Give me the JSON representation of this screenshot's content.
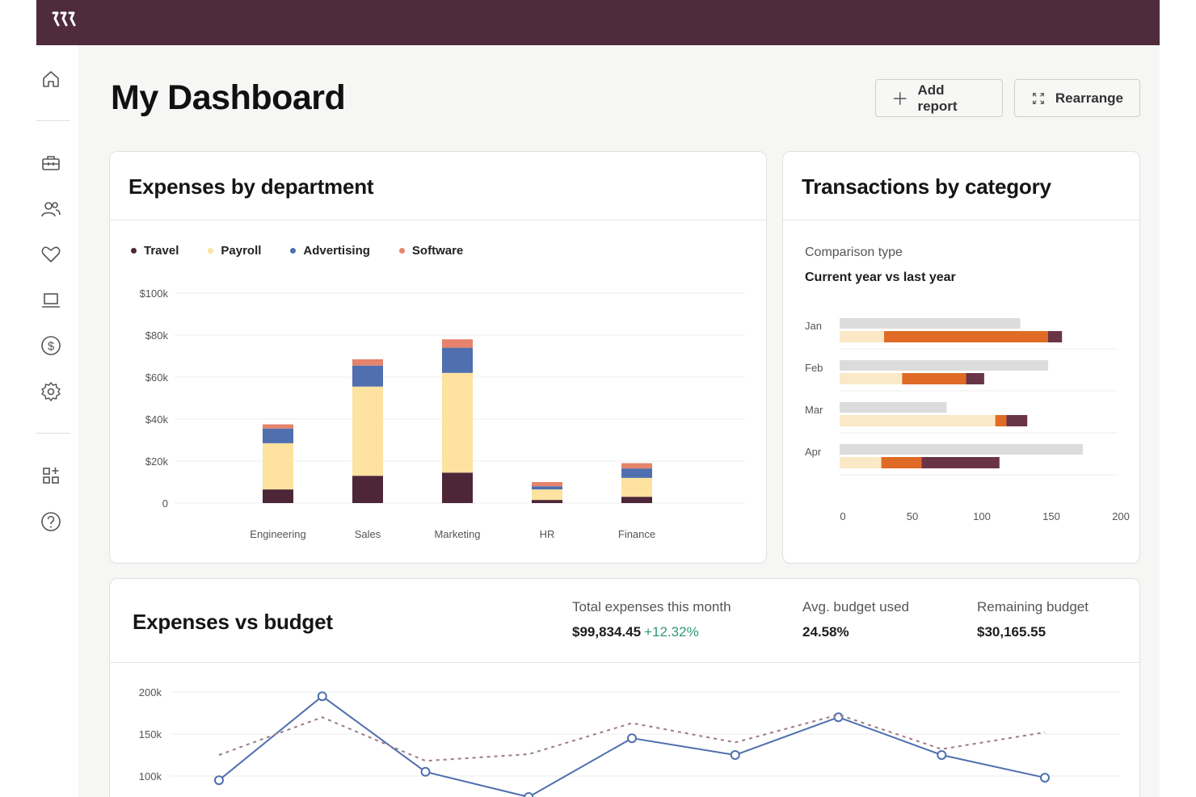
{
  "page": {
    "title": "My Dashboard"
  },
  "header": {
    "add_report_label": "Add report",
    "rearrange_label": "Rearrange"
  },
  "sidebar": {
    "items": [
      {
        "name": "home-icon"
      },
      {
        "name": "briefcase-icon"
      },
      {
        "name": "people-icon"
      },
      {
        "name": "heart-icon"
      },
      {
        "name": "laptop-icon"
      },
      {
        "name": "dollar-icon"
      },
      {
        "name": "gear-icon"
      },
      {
        "name": "add-widget-icon"
      },
      {
        "name": "help-icon"
      }
    ]
  },
  "expenses_by_department": {
    "title": "Expenses by department",
    "legend": [
      {
        "label": "Travel",
        "color": "#4d2738"
      },
      {
        "label": "Payroll",
        "color": "#fde2a0"
      },
      {
        "label": "Advertising",
        "color": "#4f6fae"
      },
      {
        "label": "Software",
        "color": "#e5836c"
      }
    ]
  },
  "transactions_by_category": {
    "title": "Transactions by category",
    "comparison_label": "Comparison type",
    "comparison_value": "Current year vs last year"
  },
  "expenses_vs_budget": {
    "title": "Expenses vs budget",
    "stats": [
      {
        "label": "Total expenses this month",
        "value": "$99,834.45",
        "delta": "+12.32%"
      },
      {
        "label": "Avg. budget used",
        "value": "24.58%"
      },
      {
        "label": "Remaining budget",
        "value": "$30,165.55"
      }
    ]
  },
  "chart_data": [
    {
      "type": "bar",
      "stacked": true,
      "categories": [
        "Engineering",
        "Sales",
        "Marketing",
        "HR",
        "Finance"
      ],
      "series": [
        {
          "name": "Travel",
          "color": "#4d2738",
          "values": [
            6.5,
            13,
            14.5,
            1.5,
            3
          ]
        },
        {
          "name": "Payroll",
          "color": "#fde2a0",
          "values": [
            22,
            42.5,
            47.5,
            5,
            9
          ]
        },
        {
          "name": "Advertising",
          "color": "#4f6fae",
          "values": [
            7,
            10,
            12,
            1.5,
            4.5
          ]
        },
        {
          "name": "Software",
          "color": "#e5836c",
          "values": [
            2,
            3,
            4,
            2,
            2.5
          ]
        }
      ],
      "y_ticks": [
        "0",
        "$20k",
        "$40k",
        "$60k",
        "$80k",
        "$100k"
      ],
      "ylim": [
        0,
        100
      ],
      "grid": true,
      "legend_position": "top-left"
    },
    {
      "type": "bar",
      "orientation": "horizontal",
      "categories": [
        "Jan",
        "Feb",
        "Mar",
        "Apr"
      ],
      "x_ticks": [
        "0",
        "50",
        "100",
        "150",
        "200"
      ],
      "xlim": [
        0,
        200
      ],
      "last_year": {
        "color": "#dcdcdc",
        "values": [
          130,
          150,
          77,
          175
        ]
      },
      "current_year": {
        "segments": [
          {
            "color": "#fbe8c6",
            "values": [
              32,
              45,
              112,
              30
            ]
          },
          {
            "color": "#df6b26",
            "values": [
              118,
              46,
              8,
              29
            ]
          },
          {
            "color": "#6a3447",
            "values": [
              10,
              13,
              15,
              56
            ]
          }
        ]
      },
      "grid": true
    },
    {
      "type": "line",
      "y_ticks": [
        "100k",
        "150k",
        "200k"
      ],
      "ylim": [
        75,
        200
      ],
      "x": [
        0,
        1,
        2,
        3,
        4,
        5,
        6,
        7,
        8
      ],
      "series": [
        {
          "style": "solid",
          "color": "#4f6fae",
          "markers": true,
          "values": [
            95,
            195,
            105,
            75,
            145,
            125,
            170,
            125,
            98
          ]
        },
        {
          "style": "dashed",
          "color": "#9c7a86",
          "markers": false,
          "values": [
            125,
            170,
            118,
            126,
            163,
            140,
            173,
            132,
            152
          ]
        }
      ],
      "grid": true
    }
  ]
}
